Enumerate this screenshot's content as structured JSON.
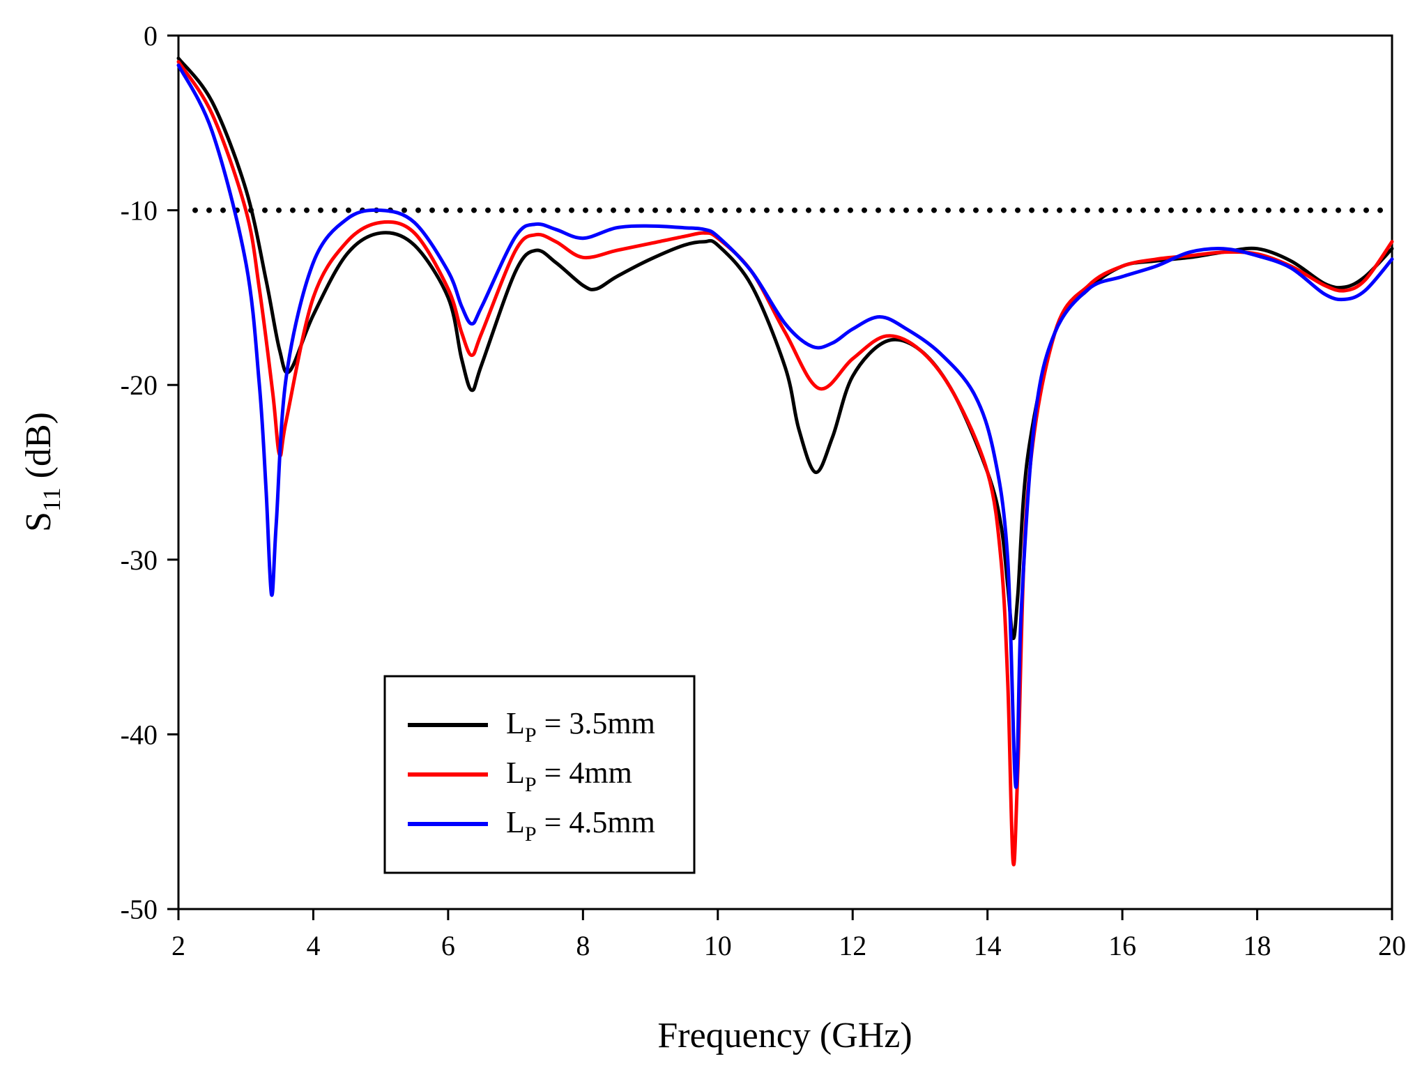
{
  "chart_data": {
    "type": "line",
    "title": "",
    "xlabel": "Frequency (GHz)",
    "ylabel": {
      "main": "S",
      "sub": "11",
      "unit": " (dB)"
    },
    "xlim": [
      2,
      20
    ],
    "ylim": [
      -50,
      0
    ],
    "x_ticks": [
      2,
      4,
      6,
      8,
      10,
      12,
      14,
      16,
      18,
      20
    ],
    "y_ticks": [
      0,
      -10,
      -20,
      -30,
      -40,
      -50
    ],
    "x_tick_labels": [
      "2",
      "4",
      "6",
      "8",
      "10",
      "12",
      "14",
      "16",
      "18",
      "20"
    ],
    "y_tick_labels": [
      "0",
      "-10",
      "-20",
      "-30",
      "-40",
      "-50"
    ],
    "grid": false,
    "legend_position": "bottom-left",
    "reference_line": {
      "y": -10,
      "style": "dotted",
      "color": "#000000"
    },
    "series": [
      {
        "name": "LP = 3.5mm",
        "label": {
          "main": "L",
          "sub": "P",
          "rest": " = 3.5mm"
        },
        "color": "#000000",
        "x": [
          2.0,
          2.5,
          3.0,
          3.3,
          3.5,
          3.65,
          4.0,
          4.5,
          5.0,
          5.5,
          6.0,
          6.2,
          6.35,
          6.5,
          7.0,
          7.3,
          7.6,
          8.0,
          8.2,
          8.5,
          9.0,
          9.5,
          9.8,
          10.0,
          10.5,
          11.0,
          11.2,
          11.45,
          11.7,
          12.0,
          12.5,
          13.0,
          13.5,
          14.0,
          14.2,
          14.3,
          14.38,
          14.45,
          14.6,
          15.0,
          15.5,
          16.0,
          16.5,
          17.0,
          17.5,
          18.0,
          18.5,
          19.0,
          19.3,
          19.6,
          20.0
        ],
        "y": [
          -1.3,
          -3.8,
          -8.8,
          -14.0,
          -18.0,
          -19.2,
          -16.0,
          -12.5,
          -11.3,
          -12.0,
          -15.0,
          -18.5,
          -20.3,
          -18.8,
          -13.5,
          -12.3,
          -13.0,
          -14.3,
          -14.5,
          -13.8,
          -12.8,
          -12.0,
          -11.8,
          -12.0,
          -14.3,
          -19.0,
          -22.5,
          -25.0,
          -23.0,
          -19.5,
          -17.5,
          -18.0,
          -20.5,
          -25.0,
          -28.0,
          -31.5,
          -34.5,
          -32.0,
          -24.0,
          -17.0,
          -14.5,
          -13.2,
          -12.9,
          -12.7,
          -12.4,
          -12.2,
          -12.9,
          -14.2,
          -14.4,
          -13.8,
          -12.2
        ]
      },
      {
        "name": "LP = 4mm",
        "label": {
          "main": "L",
          "sub": "P",
          "rest": " = 4mm"
        },
        "color": "#ff0000",
        "x": [
          2.0,
          2.5,
          3.0,
          3.2,
          3.4,
          3.5,
          3.6,
          4.0,
          4.5,
          5.0,
          5.5,
          6.0,
          6.2,
          6.35,
          6.5,
          7.0,
          7.3,
          7.6,
          8.0,
          8.5,
          9.0,
          9.5,
          9.8,
          10.0,
          10.5,
          11.0,
          11.5,
          12.0,
          12.5,
          13.0,
          13.5,
          14.0,
          14.2,
          14.3,
          14.38,
          14.45,
          14.6,
          15.0,
          15.5,
          16.0,
          16.5,
          17.0,
          17.5,
          18.0,
          18.5,
          19.0,
          19.3,
          19.6,
          20.0
        ],
        "y": [
          -1.5,
          -4.5,
          -10.0,
          -14.5,
          -20.5,
          -24.0,
          -22.0,
          -15.0,
          -11.8,
          -10.7,
          -11.3,
          -14.5,
          -17.0,
          -18.3,
          -17.0,
          -12.3,
          -11.4,
          -11.8,
          -12.7,
          -12.3,
          -11.9,
          -11.5,
          -11.3,
          -11.6,
          -13.5,
          -17.0,
          -20.2,
          -18.5,
          -17.2,
          -18.0,
          -20.5,
          -25.0,
          -30.0,
          -37.0,
          -47.3,
          -42.0,
          -26.0,
          -17.0,
          -14.3,
          -13.2,
          -12.8,
          -12.6,
          -12.4,
          -12.5,
          -13.2,
          -14.3,
          -14.6,
          -14.0,
          -11.8
        ]
      },
      {
        "name": "LP = 4.5mm",
        "label": {
          "main": "L",
          "sub": "P",
          "rest": " = 4.5mm"
        },
        "color": "#0000ff",
        "x": [
          2.0,
          2.5,
          3.0,
          3.2,
          3.3,
          3.38,
          3.45,
          3.6,
          4.0,
          4.5,
          5.0,
          5.5,
          6.0,
          6.2,
          6.35,
          6.5,
          7.0,
          7.3,
          7.6,
          8.0,
          8.5,
          9.0,
          9.5,
          9.8,
          10.0,
          10.5,
          11.0,
          11.4,
          11.7,
          12.0,
          12.4,
          12.8,
          13.3,
          13.8,
          14.1,
          14.3,
          14.42,
          14.5,
          14.7,
          15.0,
          15.5,
          16.0,
          16.5,
          17.0,
          17.5,
          18.0,
          18.5,
          19.0,
          19.3,
          19.6,
          20.0
        ],
        "y": [
          -1.7,
          -5.5,
          -13.0,
          -20.0,
          -26.0,
          -32.0,
          -28.0,
          -19.5,
          -13.0,
          -10.5,
          -10.0,
          -10.7,
          -13.5,
          -15.5,
          -16.5,
          -15.5,
          -11.5,
          -10.8,
          -11.1,
          -11.6,
          -11.0,
          -10.9,
          -11.0,
          -11.1,
          -11.5,
          -13.5,
          -16.5,
          -17.8,
          -17.6,
          -16.8,
          -16.1,
          -16.8,
          -18.2,
          -20.5,
          -24.0,
          -30.0,
          -43.0,
          -33.0,
          -22.0,
          -17.0,
          -14.5,
          -13.8,
          -13.2,
          -12.4,
          -12.2,
          -12.6,
          -13.3,
          -14.8,
          -15.1,
          -14.6,
          -12.8
        ]
      }
    ]
  }
}
